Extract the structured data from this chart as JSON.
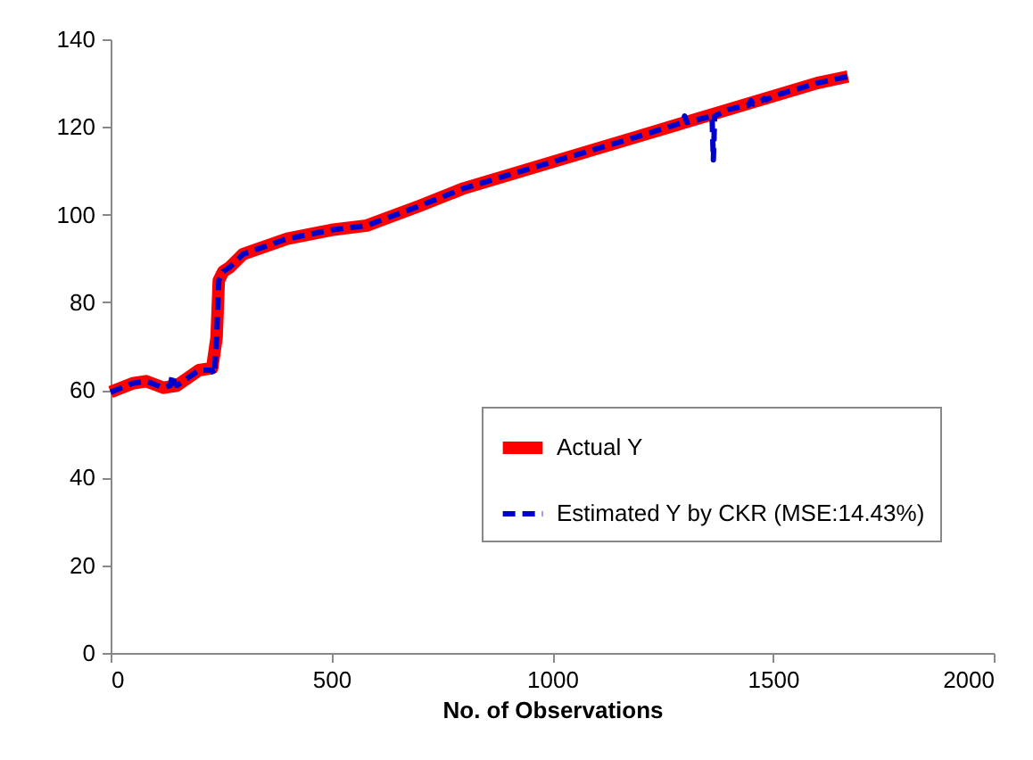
{
  "chart_data": {
    "type": "line",
    "xlabel": "No. of Observations",
    "xlim": [
      0,
      2000
    ],
    "xticks": [
      0,
      500,
      1000,
      1500,
      2000
    ],
    "ylim": [
      0,
      140
    ],
    "yticks": [
      0,
      20,
      40,
      60,
      80,
      100,
      120,
      140
    ],
    "grid": false,
    "legend": "bottom right",
    "marker": "none",
    "series": [
      {
        "name": "Actual Y",
        "color": "#ff0000",
        "line_style": "solid",
        "x": [
          0,
          50,
          80,
          120,
          150,
          200,
          230,
          240,
          245,
          255,
          270,
          300,
          400,
          500,
          580,
          700,
          800,
          1000,
          1200,
          1300,
          1400,
          1500,
          1600,
          1670
        ],
        "values": [
          59.5,
          61.5,
          62,
          60.5,
          61,
          64.5,
          65,
          72,
          85,
          87,
          88,
          91,
          94.5,
          96.5,
          97.5,
          102,
          106,
          112,
          118,
          121,
          124,
          127,
          130,
          131.5
        ]
      },
      {
        "name": "Estimated Y by CKR (MSE:14.43%)",
        "color": "#0000cc",
        "line_style": "dashed",
        "x": [
          0,
          50,
          80,
          120,
          135,
          140,
          145,
          150,
          200,
          230,
          235,
          240,
          245,
          255,
          270,
          300,
          400,
          500,
          580,
          700,
          800,
          1000,
          1200,
          1295,
          1300,
          1305,
          1362,
          1365,
          1368,
          1400,
          1445,
          1450,
          1455,
          1475,
          1480,
          1485,
          1500,
          1600,
          1670
        ],
        "values": [
          59.5,
          61.5,
          62,
          60.5,
          61,
          63.5,
          61.5,
          61,
          64.5,
          64.5,
          63.5,
          72,
          85,
          87,
          88,
          91,
          94.5,
          96.5,
          97.5,
          102,
          106,
          112,
          118,
          121,
          122.5,
          121,
          122.5,
          112.5,
          122.5,
          124,
          125,
          126,
          125.2,
          126,
          126.5,
          126.2,
          127,
          130,
          131.5
        ]
      }
    ]
  }
}
